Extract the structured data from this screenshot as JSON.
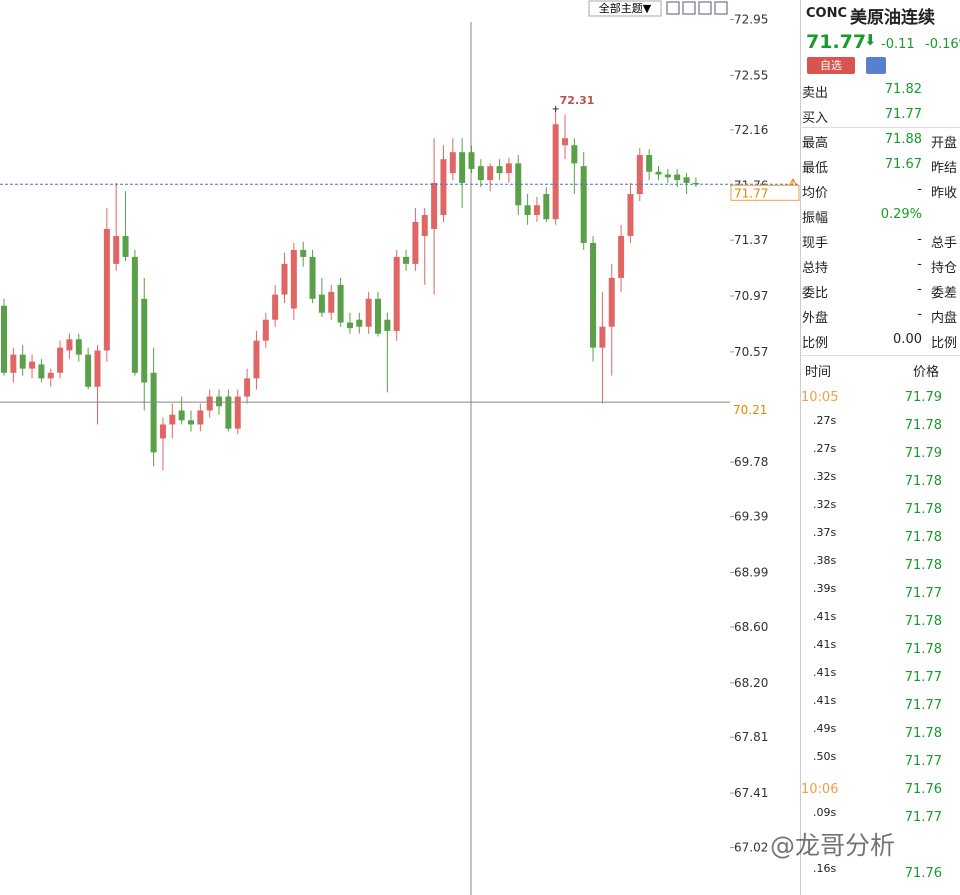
{
  "toolbar": {
    "theme_button": "全部主题▼"
  },
  "chart_data": {
    "type": "candlestick",
    "up_color": "#e06666",
    "down_color": "#5aa048",
    "candles": [
      {
        "o": 70.9,
        "h": 70.95,
        "l": 70.4,
        "c": 70.42
      },
      {
        "o": 70.42,
        "h": 70.6,
        "l": 70.35,
        "c": 70.55
      },
      {
        "o": 70.55,
        "h": 70.62,
        "l": 70.4,
        "c": 70.45
      },
      {
        "o": 70.45,
        "h": 70.55,
        "l": 70.38,
        "c": 70.5
      },
      {
        "o": 70.48,
        "h": 70.52,
        "l": 70.35,
        "c": 70.38
      },
      {
        "o": 70.38,
        "h": 70.45,
        "l": 70.32,
        "c": 70.42
      },
      {
        "o": 70.42,
        "h": 70.65,
        "l": 70.38,
        "c": 70.6
      },
      {
        "o": 70.58,
        "h": 70.7,
        "l": 70.52,
        "c": 70.66
      },
      {
        "o": 70.66,
        "h": 70.7,
        "l": 70.5,
        "c": 70.55
      },
      {
        "o": 70.55,
        "h": 70.6,
        "l": 70.3,
        "c": 70.32
      },
      {
        "o": 70.32,
        "h": 70.62,
        "l": 70.05,
        "c": 70.58
      },
      {
        "o": 70.58,
        "h": 71.6,
        "l": 70.5,
        "c": 71.45
      },
      {
        "o": 71.2,
        "h": 71.78,
        "l": 71.15,
        "c": 71.4
      },
      {
        "o": 71.4,
        "h": 71.72,
        "l": 71.22,
        "c": 71.25
      },
      {
        "o": 71.25,
        "h": 71.3,
        "l": 70.4,
        "c": 70.42
      },
      {
        "o": 70.95,
        "h": 71.1,
        "l": 70.15,
        "c": 70.35
      },
      {
        "o": 70.42,
        "h": 70.6,
        "l": 69.75,
        "c": 69.85
      },
      {
        "o": 69.95,
        "h": 70.1,
        "l": 69.72,
        "c": 70.05
      },
      {
        "o": 70.05,
        "h": 70.2,
        "l": 69.95,
        "c": 70.12
      },
      {
        "o": 70.15,
        "h": 70.25,
        "l": 70.05,
        "c": 70.08
      },
      {
        "o": 70.08,
        "h": 70.15,
        "l": 70.0,
        "c": 70.05
      },
      {
        "o": 70.05,
        "h": 70.2,
        "l": 70.0,
        "c": 70.15
      },
      {
        "o": 70.15,
        "h": 70.3,
        "l": 70.1,
        "c": 70.25
      },
      {
        "o": 70.25,
        "h": 70.3,
        "l": 70.12,
        "c": 70.18
      },
      {
        "o": 70.25,
        "h": 70.3,
        "l": 70.0,
        "c": 70.02
      },
      {
        "o": 70.02,
        "h": 70.3,
        "l": 69.98,
        "c": 70.25
      },
      {
        "o": 70.25,
        "h": 70.45,
        "l": 70.2,
        "c": 70.38
      },
      {
        "o": 70.38,
        "h": 70.72,
        "l": 70.3,
        "c": 70.65
      },
      {
        "o": 70.65,
        "h": 70.85,
        "l": 70.6,
        "c": 70.8
      },
      {
        "o": 70.8,
        "h": 71.05,
        "l": 70.75,
        "c": 70.98
      },
      {
        "o": 70.98,
        "h": 71.28,
        "l": 70.92,
        "c": 71.2
      },
      {
        "o": 70.88,
        "h": 71.35,
        "l": 70.8,
        "c": 71.3
      },
      {
        "o": 71.3,
        "h": 71.36,
        "l": 71.18,
        "c": 71.25
      },
      {
        "o": 71.25,
        "h": 71.3,
        "l": 70.92,
        "c": 70.95
      },
      {
        "o": 70.98,
        "h": 71.1,
        "l": 70.82,
        "c": 70.85
      },
      {
        "o": 70.85,
        "h": 71.05,
        "l": 70.8,
        "c": 71.0
      },
      {
        "o": 71.05,
        "h": 71.1,
        "l": 70.75,
        "c": 70.78
      },
      {
        "o": 70.78,
        "h": 70.85,
        "l": 70.7,
        "c": 70.74
      },
      {
        "o": 70.8,
        "h": 70.85,
        "l": 70.7,
        "c": 70.75
      },
      {
        "o": 70.75,
        "h": 71.0,
        "l": 70.7,
        "c": 70.95
      },
      {
        "o": 70.95,
        "h": 71.0,
        "l": 70.68,
        "c": 70.7
      },
      {
        "o": 70.8,
        "h": 70.85,
        "l": 70.28,
        "c": 70.72
      },
      {
        "o": 70.72,
        "h": 71.3,
        "l": 70.65,
        "c": 71.25
      },
      {
        "o": 71.25,
        "h": 71.3,
        "l": 71.15,
        "c": 71.2
      },
      {
        "o": 71.2,
        "h": 71.6,
        "l": 71.15,
        "c": 71.5
      },
      {
        "o": 71.4,
        "h": 71.6,
        "l": 71.05,
        "c": 71.55
      },
      {
        "o": 71.45,
        "h": 72.1,
        "l": 70.98,
        "c": 71.78
      },
      {
        "o": 71.55,
        "h": 72.05,
        "l": 71.5,
        "c": 71.95
      },
      {
        "o": 71.85,
        "h": 72.1,
        "l": 71.8,
        "c": 72.0
      },
      {
        "o": 72.0,
        "h": 72.1,
        "l": 71.6,
        "c": 71.78
      },
      {
        "o": 72.0,
        "h": 72.05,
        "l": 71.85,
        "c": 71.88
      },
      {
        "o": 71.9,
        "h": 71.95,
        "l": 71.75,
        "c": 71.8
      },
      {
        "o": 71.8,
        "h": 71.92,
        "l": 71.72,
        "c": 71.9
      },
      {
        "o": 71.9,
        "h": 71.95,
        "l": 71.8,
        "c": 71.85
      },
      {
        "o": 71.85,
        "h": 71.96,
        "l": 71.78,
        "c": 71.92
      },
      {
        "o": 71.92,
        "h": 71.98,
        "l": 71.55,
        "c": 71.62
      },
      {
        "o": 71.62,
        "h": 71.7,
        "l": 71.48,
        "c": 71.55
      },
      {
        "o": 71.55,
        "h": 71.68,
        "l": 71.5,
        "c": 71.62
      },
      {
        "o": 71.7,
        "h": 71.75,
        "l": 71.5,
        "c": 71.52
      },
      {
        "o": 71.52,
        "h": 72.31,
        "l": 71.48,
        "c": 72.2
      },
      {
        "o": 72.05,
        "h": 72.27,
        "l": 71.95,
        "c": 72.1
      },
      {
        "o": 72.05,
        "h": 72.1,
        "l": 71.7,
        "c": 71.92
      },
      {
        "o": 71.9,
        "h": 72.0,
        "l": 71.3,
        "c": 71.35
      },
      {
        "o": 71.35,
        "h": 71.4,
        "l": 70.5,
        "c": 70.6
      },
      {
        "o": 70.6,
        "h": 71.0,
        "l": 70.2,
        "c": 70.75
      },
      {
        "o": 70.75,
        "h": 71.2,
        "l": 70.4,
        "c": 71.1
      },
      {
        "o": 71.1,
        "h": 71.48,
        "l": 71.0,
        "c": 71.4
      },
      {
        "o": 71.4,
        "h": 71.78,
        "l": 71.35,
        "c": 71.7
      },
      {
        "o": 71.7,
        "h": 72.03,
        "l": 71.65,
        "c": 71.98
      },
      {
        "o": 71.98,
        "h": 72.02,
        "l": 71.8,
        "c": 71.86
      },
      {
        "o": 71.86,
        "h": 71.9,
        "l": 71.8,
        "c": 71.84
      },
      {
        "o": 71.84,
        "h": 71.88,
        "l": 71.78,
        "c": 71.82
      },
      {
        "o": 71.84,
        "h": 71.88,
        "l": 71.75,
        "c": 71.8
      },
      {
        "o": 71.82,
        "h": 71.85,
        "l": 71.7,
        "c": 71.78
      },
      {
        "o": 71.78,
        "h": 71.82,
        "l": 71.75,
        "c": 71.77
      }
    ],
    "max_candle": 59,
    "ylim": [
      66.68,
      73.09
    ],
    "yticks": [
      72.95,
      72.55,
      72.16,
      71.76,
      71.37,
      70.97,
      70.57,
      69.78,
      69.39,
      68.99,
      {
        "value": 68.6,
        "label": "68.60"
      },
      {
        "value": 68.2,
        "label": "68.20"
      },
      67.81,
      67.41,
      67.02
    ],
    "last_price": 71.77,
    "crosshair_price": 70.21
  },
  "quote": {
    "code": "CONC",
    "name": "美原油连续",
    "price": "71.77",
    "change": "-0.11",
    "change_pct": "-0.16%",
    "watch_button": "自选"
  },
  "stats": {
    "rows": [
      [
        "卖出",
        "71.82",
        ""
      ],
      [
        "买入",
        "71.77",
        ""
      ],
      [
        "最高",
        "71.88",
        "开盘"
      ],
      [
        "最低",
        "71.67",
        "昨结"
      ],
      [
        "均价",
        "-",
        "昨收"
      ],
      [
        "振幅",
        "0.29%",
        ""
      ],
      [
        "现手",
        "-",
        "总手"
      ],
      [
        "总持",
        "-",
        "持仓"
      ],
      [
        "委比",
        "-",
        "委差"
      ],
      [
        "外盘",
        "-",
        "内盘"
      ],
      [
        "比例",
        "0.00",
        "比例"
      ]
    ]
  },
  "trades": {
    "header": [
      "时间",
      "价格"
    ],
    "rows": [
      [
        "10:05",
        "71.79"
      ],
      [
        ".27s",
        "71.78"
      ],
      [
        ".27s",
        "71.79"
      ],
      [
        ".32s",
        "71.78"
      ],
      [
        ".32s",
        "71.78"
      ],
      [
        ".37s",
        "71.78"
      ],
      [
        ".38s",
        "71.78"
      ],
      [
        ".39s",
        "71.77"
      ],
      [
        ".41s",
        "71.78"
      ],
      [
        ".41s",
        "71.78"
      ],
      [
        ".41s",
        "71.77"
      ],
      [
        ".41s",
        "71.77"
      ],
      [
        ".49s",
        "71.78"
      ],
      [
        ".50s",
        "71.77"
      ],
      [
        "10:06",
        "71.76"
      ],
      [
        ".09s",
        "71.77"
      ],
      [
        ".16s",
        "71.76"
      ]
    ]
  },
  "watermark": "@龙哥分析"
}
